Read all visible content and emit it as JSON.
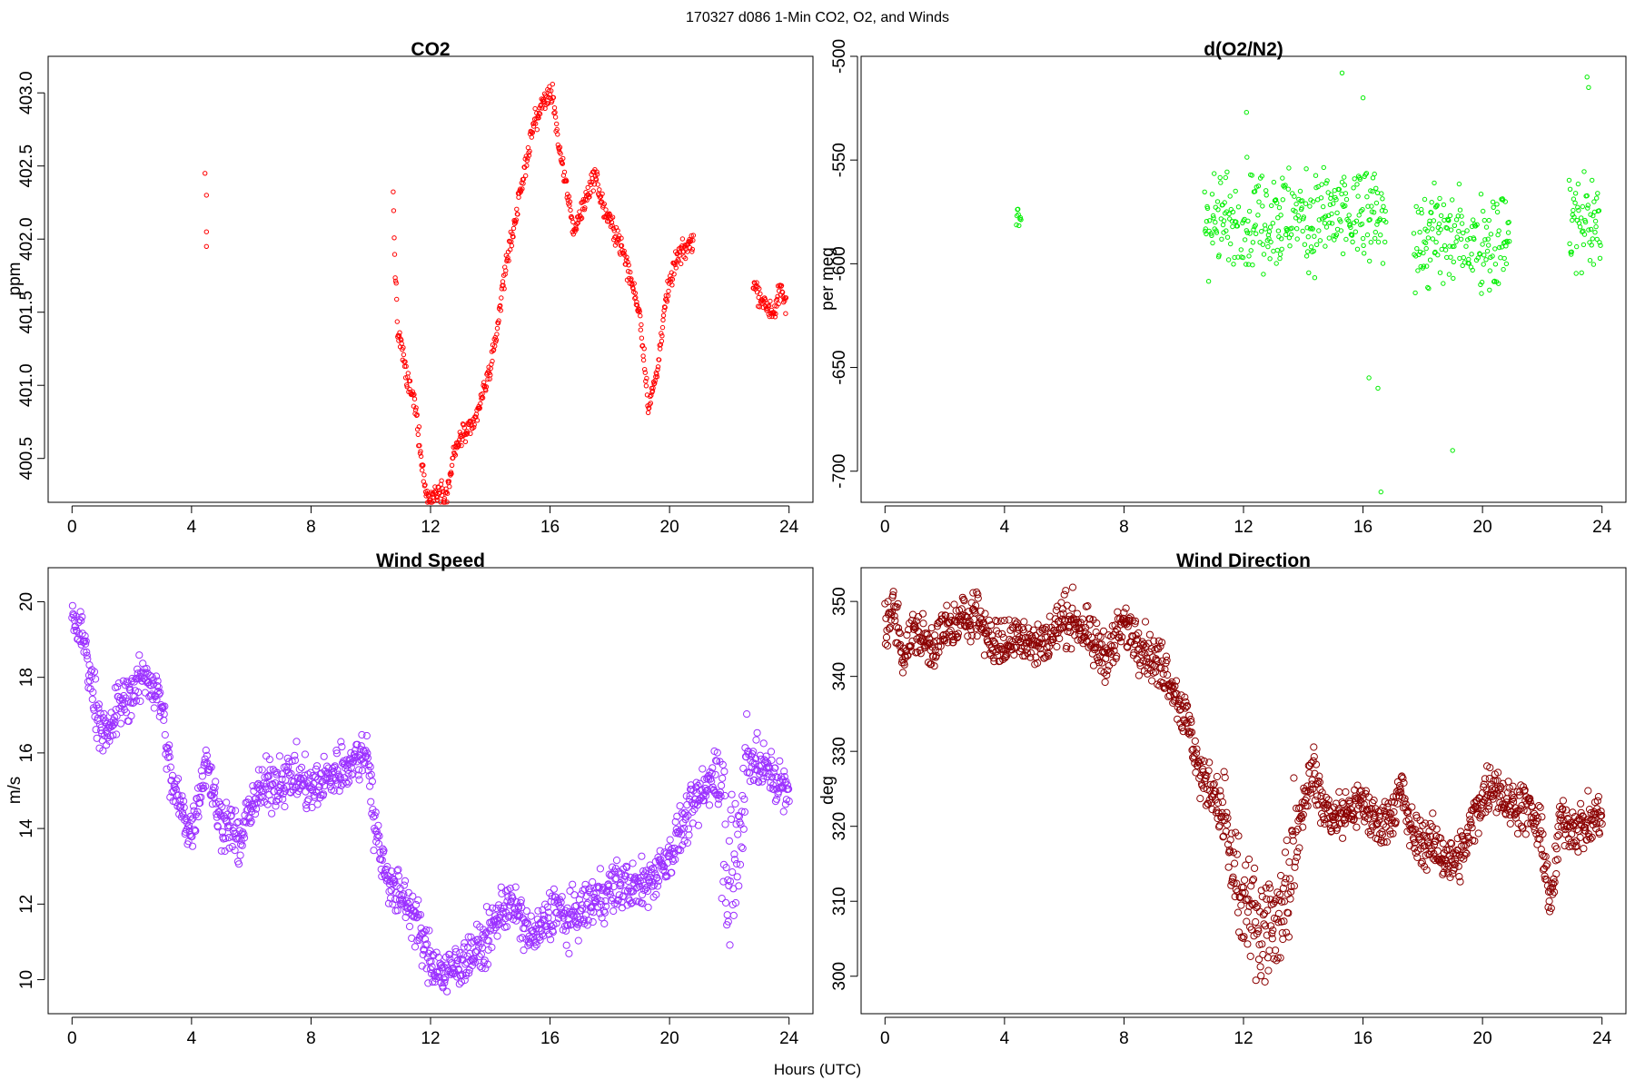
{
  "page_title": "170327   d086   1-Min CO2, O2, and Winds",
  "x_axis_label": "Hours (UTC)",
  "chart_data": [
    {
      "type": "scatter",
      "title": "CO2",
      "ylabel": "ppm",
      "xlabel": "",
      "xlim": [
        -0.8,
        24.8
      ],
      "ylim": [
        400.2,
        403.25
      ],
      "x_ticks": [
        0,
        4,
        8,
        12,
        16,
        20,
        24
      ],
      "y_ticks": [
        400.5,
        401.0,
        401.5,
        402.0,
        402.5,
        403.0
      ],
      "y_tick_labels": [
        "400.5",
        "401.0",
        "401.5",
        "402.0",
        "402.5",
        "403.0"
      ],
      "color": "#ff0000",
      "grid": false,
      "anchors": [
        [
          4.45,
          402.45
        ],
        [
          4.5,
          402.3
        ],
        [
          4.5,
          402.05
        ],
        [
          4.5,
          401.95
        ],
        [
          10.75,
          402.3
        ],
        [
          10.8,
          401.9
        ],
        [
          10.9,
          401.35
        ],
        [
          11.0,
          401.3
        ],
        [
          11.2,
          401.05
        ],
        [
          11.5,
          400.85
        ],
        [
          11.7,
          400.5
        ],
        [
          11.85,
          400.25
        ],
        [
          12.0,
          400.22
        ],
        [
          12.3,
          400.3
        ],
        [
          12.55,
          400.25
        ],
        [
          12.75,
          400.5
        ],
        [
          13.0,
          400.65
        ],
        [
          13.4,
          400.7
        ],
        [
          13.7,
          400.9
        ],
        [
          14.1,
          401.2
        ],
        [
          14.5,
          401.8
        ],
        [
          15.0,
          402.3
        ],
        [
          15.4,
          402.75
        ],
        [
          15.8,
          402.95
        ],
        [
          16.1,
          403.0
        ],
        [
          16.3,
          402.6
        ],
        [
          16.6,
          402.3
        ],
        [
          16.8,
          402.05
        ],
        [
          17.5,
          402.45
        ],
        [
          17.8,
          402.2
        ],
        [
          18.3,
          402.0
        ],
        [
          18.6,
          401.8
        ],
        [
          19.0,
          401.5
        ],
        [
          19.3,
          400.85
        ],
        [
          19.6,
          401.1
        ],
        [
          19.8,
          401.5
        ],
        [
          20.2,
          401.85
        ],
        [
          20.8,
          402.0
        ],
        [
          22.8,
          401.7
        ],
        [
          23.2,
          401.55
        ],
        [
          23.5,
          401.5
        ],
        [
          23.7,
          401.65
        ],
        [
          23.9,
          401.55
        ]
      ]
    },
    {
      "type": "scatter",
      "title": "d(O2/N2)",
      "ylabel": "per meg",
      "xlabel": "",
      "xlim": [
        -0.8,
        24.8
      ],
      "ylim": [
        -715,
        -500
      ],
      "x_ticks": [
        0,
        4,
        8,
        12,
        16,
        20,
        24
      ],
      "y_ticks": [
        -700,
        -650,
        -600,
        -550,
        -500
      ],
      "y_tick_labels": [
        "-700",
        "-650",
        "-600",
        "-550",
        "-500"
      ],
      "color": "#00ee00",
      "grid": false,
      "segments": [
        {
          "x_start": 4.4,
          "x_end": 4.55,
          "center": -578,
          "spread": 6
        },
        {
          "x_start": 10.7,
          "x_end": 16.8,
          "center": -578,
          "spread": 22
        },
        {
          "x_start": 17.7,
          "x_end": 20.9,
          "center": -588,
          "spread": 22
        },
        {
          "x_start": 22.9,
          "x_end": 23.95,
          "center": -580,
          "spread": 22
        }
      ],
      "outliers": [
        [
          15.3,
          -508
        ],
        [
          16.0,
          -520
        ],
        [
          16.6,
          -710
        ],
        [
          16.2,
          -655
        ],
        [
          19.0,
          -690
        ],
        [
          23.5,
          -510
        ],
        [
          23.55,
          -515
        ],
        [
          16.5,
          -660
        ],
        [
          12.1,
          -527
        ]
      ]
    },
    {
      "type": "scatter",
      "title": "Wind Speed",
      "ylabel": "m/s",
      "xlabel": "",
      "xlim": [
        -0.8,
        24.8
      ],
      "ylim": [
        9.1,
        20.9
      ],
      "x_ticks": [
        0,
        4,
        8,
        12,
        16,
        20,
        24
      ],
      "y_ticks": [
        10,
        12,
        14,
        16,
        18,
        20
      ],
      "y_tick_labels": [
        "10",
        "12",
        "14",
        "16",
        "18",
        "20"
      ],
      "color": "#9b30ff",
      "grid": false,
      "anchors": [
        [
          0.0,
          19.6
        ],
        [
          0.4,
          19.0
        ],
        [
          0.8,
          17.2
        ],
        [
          1.2,
          16.3
        ],
        [
          1.5,
          17.2
        ],
        [
          2.0,
          17.6
        ],
        [
          2.5,
          18.1
        ],
        [
          3.0,
          17.3
        ],
        [
          3.3,
          15.3
        ],
        [
          3.6,
          14.6
        ],
        [
          4.0,
          13.9
        ],
        [
          4.5,
          15.9
        ],
        [
          4.9,
          14.3
        ],
        [
          5.3,
          14.1
        ],
        [
          5.6,
          13.5
        ],
        [
          6.0,
          14.7
        ],
        [
          6.5,
          15.1
        ],
        [
          7.0,
          15.3
        ],
        [
          7.5,
          15.4
        ],
        [
          8.0,
          15.0
        ],
        [
          8.5,
          15.3
        ],
        [
          9.0,
          15.6
        ],
        [
          9.5,
          15.8
        ],
        [
          9.9,
          16.1
        ],
        [
          10.1,
          14.2
        ],
        [
          10.4,
          13.1
        ],
        [
          10.8,
          12.3
        ],
        [
          11.2,
          12.1
        ],
        [
          11.5,
          11.6
        ],
        [
          11.8,
          10.8
        ],
        [
          12.1,
          10.4
        ],
        [
          12.5,
          10.1
        ],
        [
          12.9,
          10.4
        ],
        [
          13.4,
          10.7
        ],
        [
          13.8,
          10.9
        ],
        [
          14.2,
          11.6
        ],
        [
          14.6,
          12.1
        ],
        [
          15.0,
          11.6
        ],
        [
          15.4,
          11.1
        ],
        [
          15.8,
          11.4
        ],
        [
          16.2,
          12.0
        ],
        [
          16.5,
          11.5
        ],
        [
          17.0,
          11.8
        ],
        [
          17.5,
          12.1
        ],
        [
          18.0,
          12.4
        ],
        [
          18.5,
          12.5
        ],
        [
          19.0,
          12.4
        ],
        [
          19.5,
          12.8
        ],
        [
          20.0,
          13.3
        ],
        [
          20.4,
          14.0
        ],
        [
          20.8,
          14.6
        ],
        [
          21.2,
          15.0
        ],
        [
          21.5,
          15.6
        ],
        [
          21.8,
          14.6
        ],
        [
          22.0,
          12.5
        ],
        [
          22.3,
          13.5
        ],
        [
          22.6,
          16.0
        ],
        [
          23.0,
          15.6
        ],
        [
          23.4,
          15.5
        ],
        [
          23.8,
          15.0
        ],
        [
          24.0,
          14.9
        ]
      ]
    },
    {
      "type": "scatter",
      "title": "Wind Direction",
      "ylabel": "deg",
      "xlabel": "",
      "xlim": [
        -0.8,
        24.8
      ],
      "ylim": [
        295,
        354.5
      ],
      "x_ticks": [
        0,
        4,
        8,
        12,
        16,
        20,
        24
      ],
      "y_ticks": [
        300,
        310,
        320,
        330,
        340,
        350
      ],
      "y_tick_labels": [
        "300",
        "310",
        "320",
        "330",
        "340",
        "350"
      ],
      "color": "#8b0000",
      "grid": false,
      "anchors": [
        [
          0.0,
          347
        ],
        [
          0.3,
          349
        ],
        [
          0.6,
          343
        ],
        [
          1.0,
          346
        ],
        [
          1.5,
          344
        ],
        [
          2.0,
          346
        ],
        [
          2.5,
          347
        ],
        [
          3.0,
          349
        ],
        [
          3.5,
          345
        ],
        [
          4.0,
          344
        ],
        [
          4.5,
          346
        ],
        [
          5.0,
          344
        ],
        [
          5.5,
          345
        ],
        [
          6.0,
          348
        ],
        [
          6.5,
          347
        ],
        [
          7.0,
          344
        ],
        [
          7.5,
          343
        ],
        [
          8.0,
          347
        ],
        [
          8.5,
          345
        ],
        [
          9.0,
          342
        ],
        [
          9.4,
          341
        ],
        [
          9.8,
          337
        ],
        [
          10.2,
          333
        ],
        [
          10.6,
          326
        ],
        [
          11.0,
          325
        ],
        [
          11.4,
          320
        ],
        [
          11.8,
          310
        ],
        [
          12.2,
          308
        ],
        [
          12.6,
          307
        ],
        [
          13.0,
          306
        ],
        [
          13.4,
          309
        ],
        [
          13.7,
          318
        ],
        [
          14.0,
          323
        ],
        [
          14.3,
          328
        ],
        [
          14.6,
          323
        ],
        [
          15.0,
          321
        ],
        [
          15.5,
          322
        ],
        [
          16.0,
          323
        ],
        [
          16.5,
          320
        ],
        [
          17.0,
          322
        ],
        [
          17.3,
          325
        ],
        [
          17.6,
          319
        ],
        [
          18.0,
          318
        ],
        [
          18.5,
          317
        ],
        [
          19.0,
          315
        ],
        [
          19.4,
          317
        ],
        [
          19.7,
          321
        ],
        [
          20.0,
          324
        ],
        [
          20.4,
          326
        ],
        [
          20.8,
          323
        ],
        [
          21.2,
          323
        ],
        [
          21.6,
          322
        ],
        [
          22.0,
          318
        ],
        [
          22.3,
          309
        ],
        [
          22.6,
          321
        ],
        [
          23.0,
          320
        ],
        [
          23.5,
          320
        ],
        [
          24.0,
          322
        ]
      ]
    }
  ]
}
